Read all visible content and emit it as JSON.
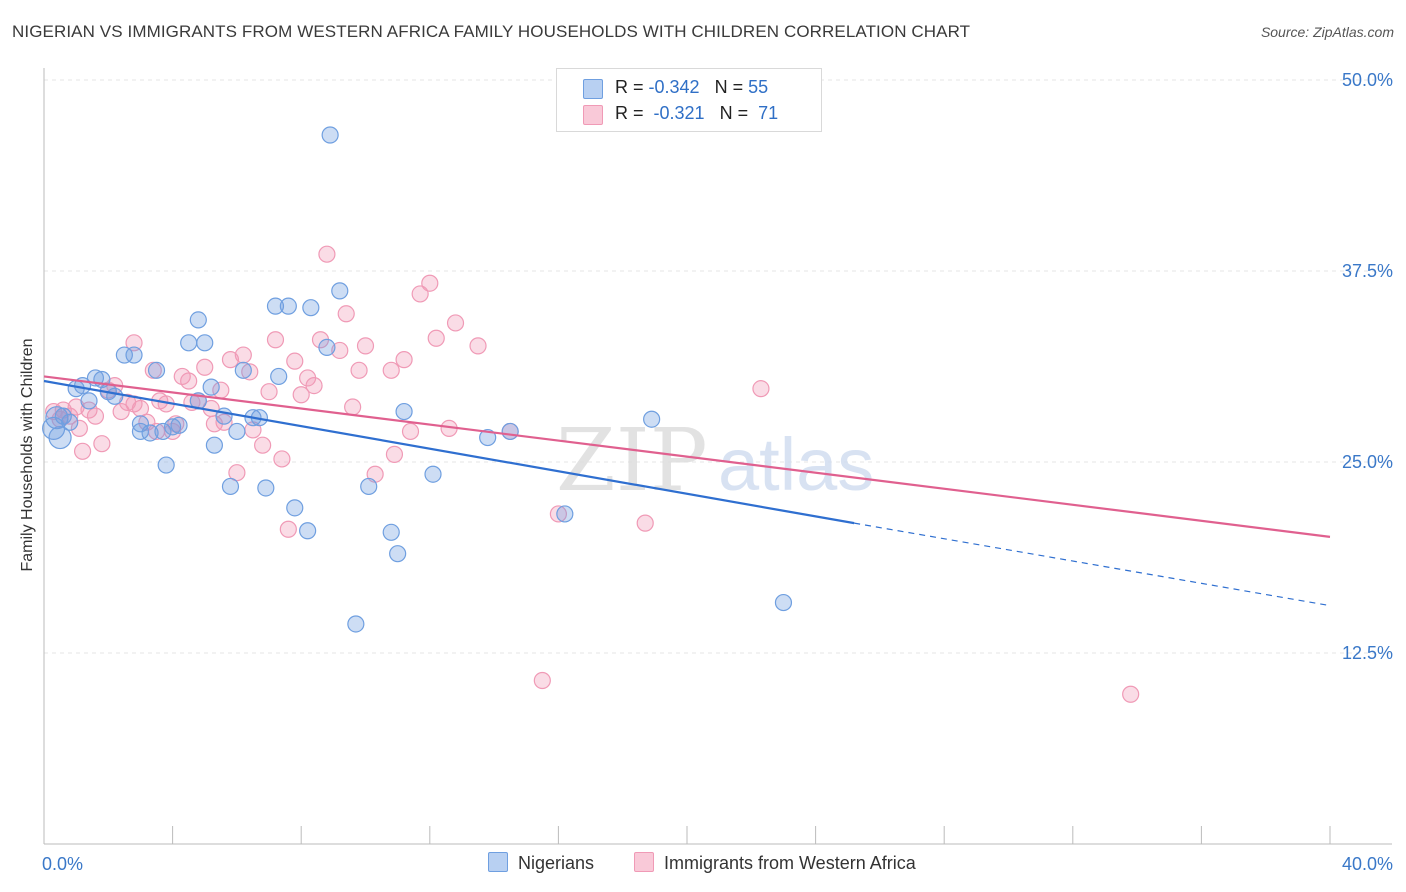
{
  "header": {
    "title": "NIGERIAN VS IMMIGRANTS FROM WESTERN AFRICA FAMILY HOUSEHOLDS WITH CHILDREN CORRELATION CHART",
    "source": "Source: ZipAtlas.com"
  },
  "legend": {
    "row1": {
      "r_label": "R = ",
      "r_value": "-0.342",
      "n_label": "N = ",
      "n_value": "55"
    },
    "row2": {
      "r_label": "R = ",
      "r_value": "-0.321",
      "n_label": "N = ",
      "n_value": "71"
    }
  },
  "colors": {
    "series1": "#6f9fe0",
    "series1_line": "#2f6fd0",
    "series2": "#f09ab6",
    "series2_line": "#e0608f",
    "grid": "#e6e6e6",
    "tick_label": "#3a78c8"
  },
  "watermark": {
    "zip": "ZIP",
    "atlas": "atlas"
  },
  "chart_data": {
    "type": "scatter",
    "title": "NIGERIAN VS IMMIGRANTS FROM WESTERN AFRICA FAMILY HOUSEHOLDS WITH CHILDREN CORRELATION CHART",
    "xlabel": "",
    "ylabel": "Family Households with Children",
    "xlim": [
      0,
      40
    ],
    "ylim": [
      0,
      52
    ],
    "x_tick_labels": [
      "0.0%",
      "40.0%"
    ],
    "y_ticks": [
      12.5,
      25.0,
      37.5,
      50.0
    ],
    "y_tick_labels": [
      "12.5%",
      "25.0%",
      "37.5%",
      "50.0%"
    ],
    "grid": true,
    "legend_position": "top-center",
    "series": [
      {
        "name": "Nigerians",
        "r": -0.342,
        "n": 55,
        "trend": {
          "x": [
            0,
            25.2
          ],
          "y": [
            30.3,
            21.0
          ],
          "dashed_to": [
            40,
            15.6
          ]
        },
        "points": [
          [
            0.4,
            27.9
          ],
          [
            0.3,
            27.2
          ],
          [
            0.5,
            26.6
          ],
          [
            0.6,
            28.0
          ],
          [
            0.8,
            27.6
          ],
          [
            1.0,
            29.8
          ],
          [
            1.2,
            30.0
          ],
          [
            1.4,
            29.0
          ],
          [
            1.6,
            30.5
          ],
          [
            1.8,
            30.4
          ],
          [
            2.0,
            29.6
          ],
          [
            2.2,
            29.3
          ],
          [
            2.5,
            32.0
          ],
          [
            2.8,
            32.0
          ],
          [
            3.0,
            27.0
          ],
          [
            3.0,
            27.5
          ],
          [
            3.3,
            26.9
          ],
          [
            3.5,
            31.0
          ],
          [
            3.7,
            27.0
          ],
          [
            3.8,
            24.8
          ],
          [
            4.0,
            27.3
          ],
          [
            4.2,
            27.4
          ],
          [
            4.5,
            32.8
          ],
          [
            4.8,
            29.0
          ],
          [
            4.8,
            34.3
          ],
          [
            5.0,
            32.8
          ],
          [
            5.2,
            29.9
          ],
          [
            5.3,
            26.1
          ],
          [
            5.6,
            28.0
          ],
          [
            5.8,
            23.4
          ],
          [
            6.0,
            27.0
          ],
          [
            6.2,
            31.0
          ],
          [
            6.5,
            27.9
          ],
          [
            6.7,
            27.9
          ],
          [
            6.9,
            23.3
          ],
          [
            7.2,
            35.2
          ],
          [
            7.3,
            30.6
          ],
          [
            7.6,
            35.2
          ],
          [
            7.8,
            22.0
          ],
          [
            8.2,
            20.5
          ],
          [
            8.3,
            35.1
          ],
          [
            8.8,
            32.5
          ],
          [
            8.9,
            46.4
          ],
          [
            9.2,
            36.2
          ],
          [
            9.7,
            14.4
          ],
          [
            10.1,
            23.4
          ],
          [
            10.8,
            20.4
          ],
          [
            11.0,
            19.0
          ],
          [
            11.2,
            28.3
          ],
          [
            12.1,
            24.2
          ],
          [
            13.8,
            26.6
          ],
          [
            14.5,
            27.0
          ],
          [
            16.2,
            21.6
          ],
          [
            18.9,
            27.8
          ],
          [
            23.0,
            15.8
          ]
        ]
      },
      {
        "name": "Immigrants from Western Africa",
        "r": -0.321,
        "n": 71,
        "trend": {
          "x": [
            0,
            40
          ],
          "y": [
            30.6,
            20.1
          ]
        },
        "points": [
          [
            0.3,
            28.3
          ],
          [
            0.5,
            27.8
          ],
          [
            0.6,
            28.4
          ],
          [
            0.8,
            28.0
          ],
          [
            1.0,
            28.6
          ],
          [
            1.1,
            27.2
          ],
          [
            1.2,
            25.7
          ],
          [
            1.4,
            28.4
          ],
          [
            1.6,
            28.0
          ],
          [
            1.8,
            26.2
          ],
          [
            2.0,
            29.7
          ],
          [
            2.2,
            30.0
          ],
          [
            2.4,
            28.3
          ],
          [
            2.6,
            28.9
          ],
          [
            2.8,
            28.8
          ],
          [
            2.8,
            32.8
          ],
          [
            3.0,
            28.5
          ],
          [
            3.2,
            27.6
          ],
          [
            3.4,
            31.0
          ],
          [
            3.5,
            27.0
          ],
          [
            3.6,
            29.0
          ],
          [
            3.8,
            28.8
          ],
          [
            4.0,
            27.0
          ],
          [
            4.1,
            27.5
          ],
          [
            4.3,
            30.6
          ],
          [
            4.5,
            30.3
          ],
          [
            4.6,
            28.9
          ],
          [
            4.8,
            29.0
          ],
          [
            5.0,
            31.2
          ],
          [
            5.2,
            28.5
          ],
          [
            5.3,
            27.5
          ],
          [
            5.5,
            29.7
          ],
          [
            5.6,
            27.6
          ],
          [
            5.8,
            31.7
          ],
          [
            6.0,
            24.3
          ],
          [
            6.2,
            32.0
          ],
          [
            6.4,
            30.9
          ],
          [
            6.5,
            27.1
          ],
          [
            6.8,
            26.1
          ],
          [
            7.0,
            29.6
          ],
          [
            7.2,
            33.0
          ],
          [
            7.4,
            25.2
          ],
          [
            7.6,
            20.6
          ],
          [
            7.8,
            31.6
          ],
          [
            8.0,
            29.4
          ],
          [
            8.2,
            30.5
          ],
          [
            8.4,
            30.0
          ],
          [
            8.6,
            33.0
          ],
          [
            8.8,
            38.6
          ],
          [
            9.2,
            32.3
          ],
          [
            9.4,
            34.7
          ],
          [
            9.6,
            28.6
          ],
          [
            9.8,
            31.0
          ],
          [
            10.0,
            32.6
          ],
          [
            10.3,
            24.2
          ],
          [
            10.8,
            31.0
          ],
          [
            10.9,
            25.5
          ],
          [
            11.2,
            31.7
          ],
          [
            11.4,
            27.0
          ],
          [
            11.7,
            36.0
          ],
          [
            12.0,
            36.7
          ],
          [
            12.2,
            33.1
          ],
          [
            12.8,
            34.1
          ],
          [
            12.6,
            27.2
          ],
          [
            13.5,
            32.6
          ],
          [
            14.5,
            27.0
          ],
          [
            16.0,
            21.6
          ],
          [
            15.5,
            10.7
          ],
          [
            18.7,
            21.0
          ],
          [
            22.3,
            29.8
          ],
          [
            33.8,
            9.8
          ]
        ]
      }
    ]
  },
  "bottom_legend": {
    "item1": "Nigerians",
    "item2": "Immigrants from Western Africa"
  }
}
